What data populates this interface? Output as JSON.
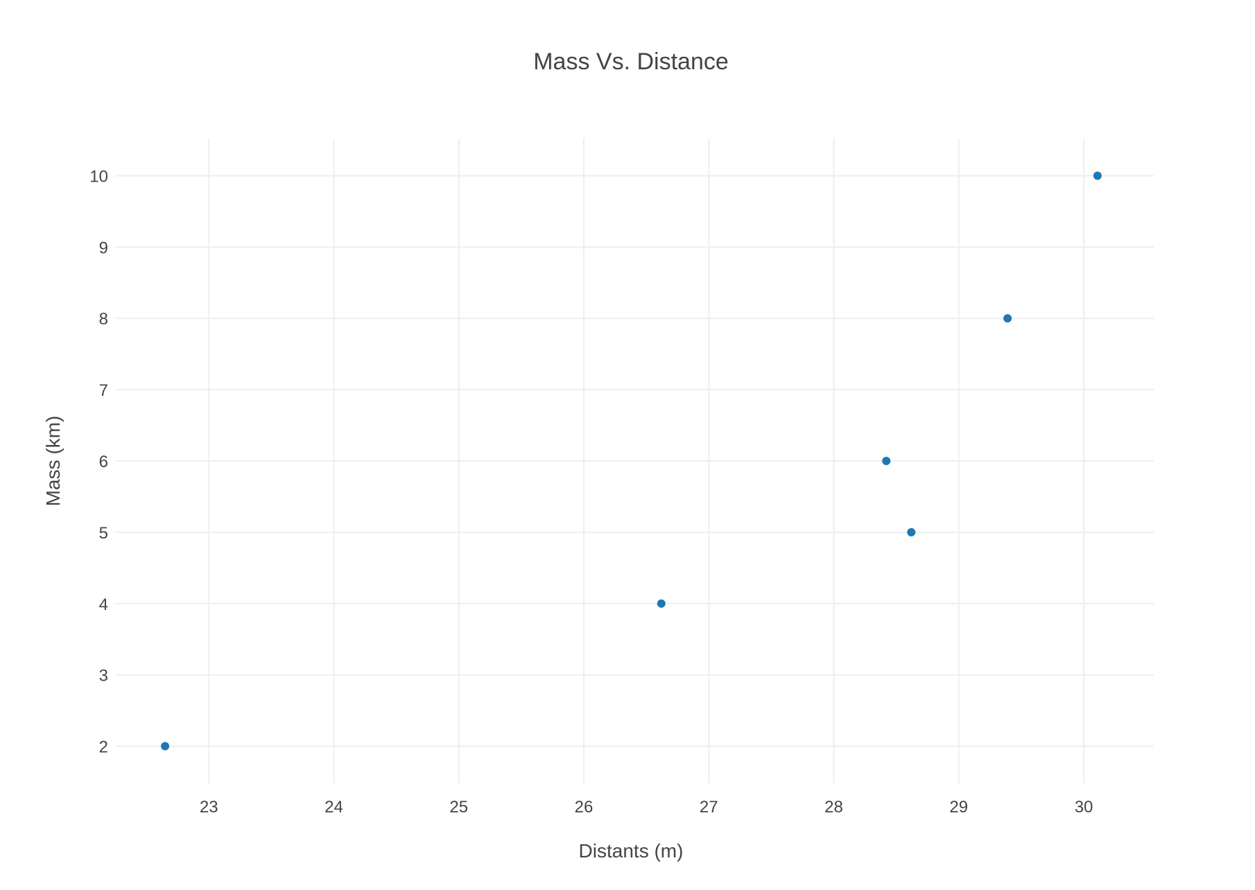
{
  "chart_data": {
    "type": "scatter",
    "title": "Mass Vs. Distance",
    "xlabel": "Distants (m)",
    "ylabel": "Mass (km)",
    "xlim": [
      22.25,
      30.56
    ],
    "ylim": [
      1.48,
      10.52
    ],
    "xticks": [
      23,
      24,
      25,
      26,
      27,
      28,
      29,
      30
    ],
    "yticks": [
      2,
      3,
      4,
      5,
      6,
      7,
      8,
      9,
      10
    ],
    "grid": true,
    "legend": "none",
    "marker_color": "#1f77b4",
    "points": [
      {
        "x": 22.65,
        "y": 2
      },
      {
        "x": 26.62,
        "y": 4
      },
      {
        "x": 28.42,
        "y": 6
      },
      {
        "x": 28.62,
        "y": 5
      },
      {
        "x": 29.39,
        "y": 8
      },
      {
        "x": 30.11,
        "y": 10
      }
    ]
  }
}
